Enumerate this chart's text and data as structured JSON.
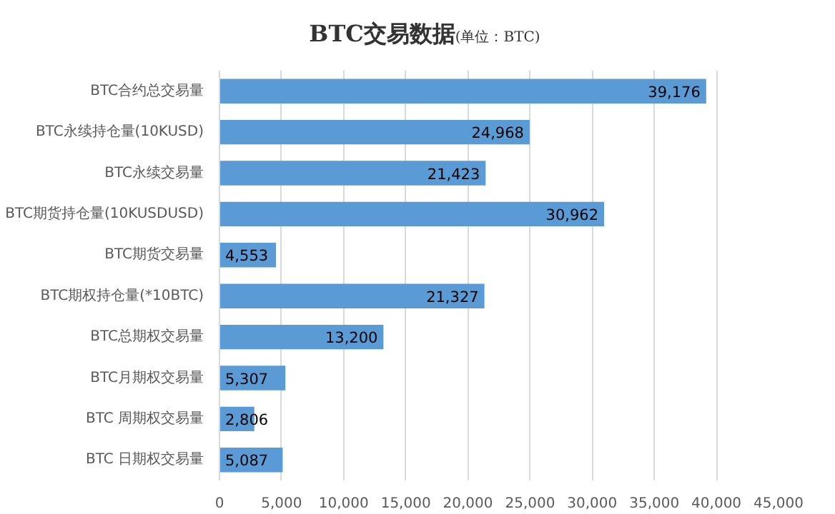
{
  "chart_data": {
    "type": "bar",
    "orientation": "horizontal",
    "title": "BTC交易数据",
    "subtitle": "(单位：BTC)",
    "categories": [
      "BTC合约总交易量",
      "BTC永续持仓量(10KUSD)",
      "BTC永续交易量",
      "BTC期货持仓量(10KUSDUSD)",
      "BTC期货交易量",
      "BTC期权持仓量(*10BTC)",
      "BTC总期权交易量",
      "BTC月期权交易量",
      "BTC 周期权交易量",
      "BTC 日期权交易量"
    ],
    "values": [
      39176,
      24968,
      21423,
      30962,
      4553,
      21327,
      13200,
      5307,
      2806,
      5087
    ],
    "value_labels": [
      "39,176",
      "24,968",
      "21,423",
      "30,962",
      "4,553",
      "21,327",
      "13,200",
      "5,307",
      "2,806",
      "5,087"
    ],
    "color": "#5b9bd5",
    "xlim": [
      0,
      45000
    ],
    "xticks": [
      0,
      {
        "value": 5000,
        "label": "5,000"
      },
      {
        "value": 10000,
        "label": "10,000"
      },
      {
        "value": 15000,
        "label": "15,000"
      },
      {
        "value": 20000,
        "label": "20,000"
      },
      {
        "value": 25000,
        "label": "25,000"
      },
      {
        "value": 30000,
        "label": "30,000"
      },
      {
        "value": 35000,
        "label": "35,000"
      },
      {
        "value": 40000,
        "label": "40,000"
      },
      {
        "value": 45000,
        "label": "45,000"
      }
    ],
    "grid": "x"
  }
}
